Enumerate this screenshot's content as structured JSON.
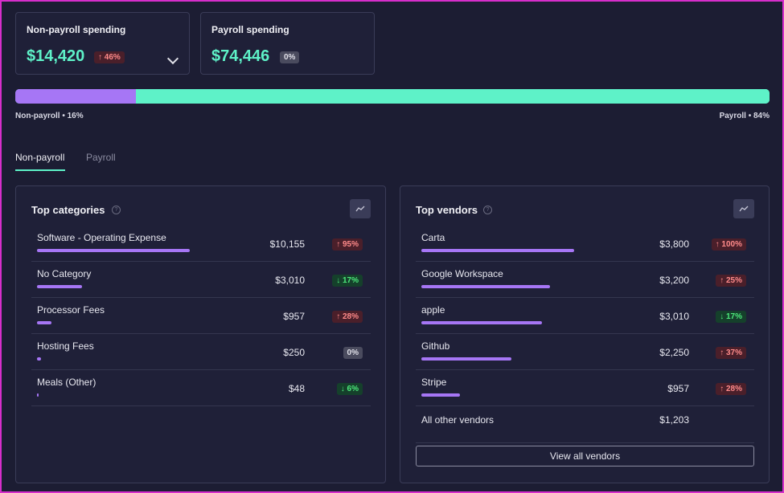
{
  "summary": {
    "non_payroll": {
      "label": "Non-payroll spending",
      "value": "$14,420",
      "change": "↑ 46%"
    },
    "payroll": {
      "label": "Payroll spending",
      "value": "$74,446",
      "change": "0%"
    }
  },
  "split_bar": {
    "non_payroll_fraction": 0.16,
    "non_payroll_label": "Non-payroll • 16%",
    "payroll_label": "Payroll • 84%"
  },
  "tabs": [
    {
      "label": "Non-payroll",
      "active": true
    },
    {
      "label": "Payroll",
      "active": false
    }
  ],
  "categories": {
    "title": "Top categories",
    "help": "?",
    "rows": [
      {
        "name": "Software - Operating Expense",
        "amount": "$10,155",
        "change": "↑ 95%",
        "dir": "up",
        "share": 1.0
      },
      {
        "name": "No Category",
        "amount": "$3,010",
        "change": "↓ 17%",
        "dir": "down",
        "share": 0.296
      },
      {
        "name": "Processor Fees",
        "amount": "$957",
        "change": "↑ 28%",
        "dir": "up",
        "share": 0.094
      },
      {
        "name": "Hosting Fees",
        "amount": "$250",
        "change": "0%",
        "dir": "neutral",
        "share": 0.025
      },
      {
        "name": "Meals (Other)",
        "amount": "$48",
        "change": "↓ 6%",
        "dir": "down",
        "share": 0.005
      }
    ]
  },
  "vendors": {
    "title": "Top vendors",
    "help": "?",
    "rows": [
      {
        "name": "Carta",
        "amount": "$3,800",
        "change": "↑ 100%",
        "dir": "up",
        "share": 1.0
      },
      {
        "name": "Google Workspace",
        "amount": "$3,200",
        "change": "↑ 25%",
        "dir": "up",
        "share": 0.842
      },
      {
        "name": "apple",
        "amount": "$3,010",
        "change": "↓ 17%",
        "dir": "down",
        "share": 0.792
      },
      {
        "name": "Github",
        "amount": "$2,250",
        "change": "↑ 37%",
        "dir": "up",
        "share": 0.592
      },
      {
        "name": "Stripe",
        "amount": "$957",
        "change": "↑ 28%",
        "dir": "up",
        "share": 0.252
      }
    ],
    "other": {
      "name": "All other vendors",
      "amount": "$1,203"
    },
    "view_all_label": "View all vendors"
  },
  "colors": {
    "accent_teal": "#5ef2c8",
    "accent_purple": "#a676f5",
    "up_text": "#ff8a8a",
    "down_text": "#4dea7c"
  }
}
